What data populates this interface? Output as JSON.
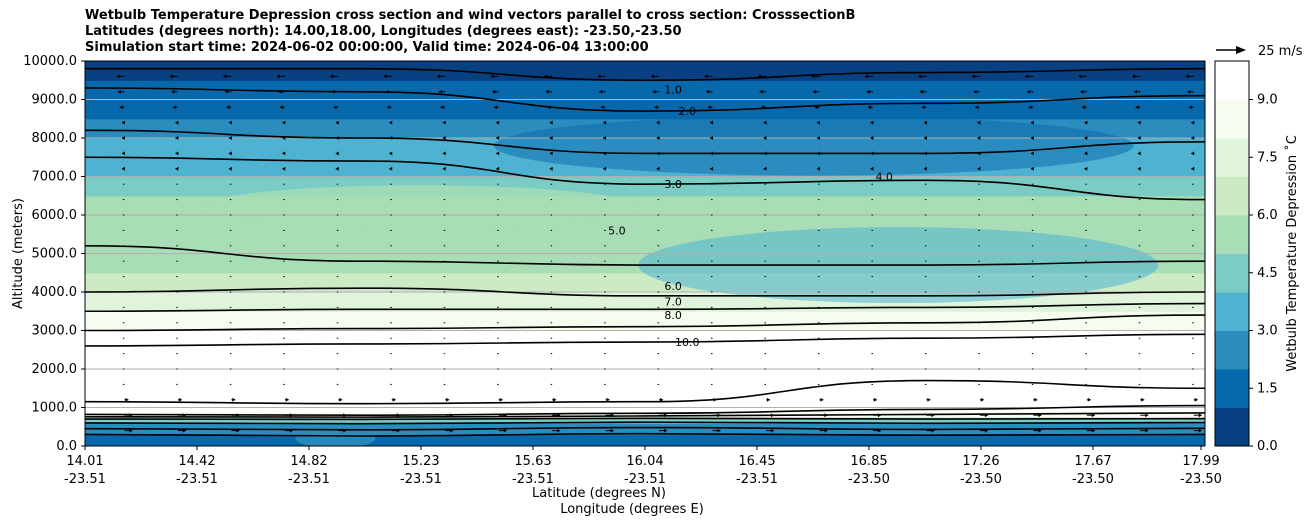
{
  "chart_data": {
    "type": "heatmap",
    "title_lines": [
      "Wetbulb Temperature Depression cross section and wind vectors parallel to cross section: CrosssectionB",
      "Latitudes (degrees north): 14.00,18.00, Longitudes (degrees east): -23.50,-23.50",
      "Simulation start time: 2024-06-02 00:00:00, Valid time: 2024-06-04 13:00:00"
    ],
    "ylabel": "Altitude (meters)",
    "xlabel_lat": "Latitude (degrees N)",
    "xlabel_lon": "Longitude (degrees E)",
    "ylim": [
      0,
      10000
    ],
    "xlim": [
      14.01,
      17.99
    ],
    "yticks": [
      "0.0",
      "1000.0",
      "2000.0",
      "3000.0",
      "4000.0",
      "5000.0",
      "6000.0",
      "7000.0",
      "8000.0",
      "9000.0",
      "10000.0"
    ],
    "xticks_lat": [
      "14.01",
      "14.42",
      "14.82",
      "15.23",
      "15.63",
      "16.04",
      "16.45",
      "16.85",
      "17.26",
      "17.67",
      "17.99"
    ],
    "xticks_lon": [
      "-23.51",
      "-23.51",
      "-23.51",
      "-23.51",
      "-23.51",
      "-23.51",
      "-23.51",
      "-23.50",
      "-23.50",
      "-23.50",
      "-23.50"
    ],
    "grid": true,
    "colorbar": {
      "label": "Wetbulb Temperature Depression ˚C",
      "ticks": [
        "0.0",
        "1.5",
        "3.0",
        "4.5",
        "6.0",
        "7.5",
        "9.0"
      ],
      "range": [
        0,
        10
      ],
      "colormap": "GnBu_r"
    },
    "vector_key": "25 m/s",
    "contour_levels": [
      1.0,
      2.0,
      3.0,
      4.0,
      5.0,
      6.0,
      7.0,
      8.0,
      10.0
    ],
    "profile": {
      "altitude_m": [
        0,
        300,
        600,
        750,
        900,
        1000,
        1500,
        2000,
        2500,
        3000,
        3500,
        4000,
        4500,
        5000,
        5500,
        6000,
        6500,
        7000,
        7500,
        8000,
        8500,
        9000,
        9500,
        10000
      ],
      "depression_c": [
        1.0,
        1.5,
        2.5,
        6.0,
        10.5,
        11.0,
        11.0,
        11.0,
        10.5,
        9.0,
        7.5,
        6.5,
        6.0,
        5.5,
        5.5,
        6.0,
        5.0,
        4.0,
        3.5,
        2.5,
        2.0,
        1.5,
        1.0,
        0.5
      ]
    },
    "contour_labels": [
      "1.0",
      "2.0",
      "3.0",
      "4.0",
      "5.0",
      "6.0",
      "7.0",
      "8.0",
      "10.0"
    ]
  },
  "colors": {
    "c0": "#084081",
    "c1": "#0868ac",
    "c2": "#2b8cbe",
    "c3": "#4eb3d3",
    "c4": "#7bccc4",
    "c5": "#a8ddb5",
    "c6": "#ccebc5",
    "c7": "#e0f3db",
    "c8": "#f7fcf0",
    "c9": "#ffffff"
  }
}
